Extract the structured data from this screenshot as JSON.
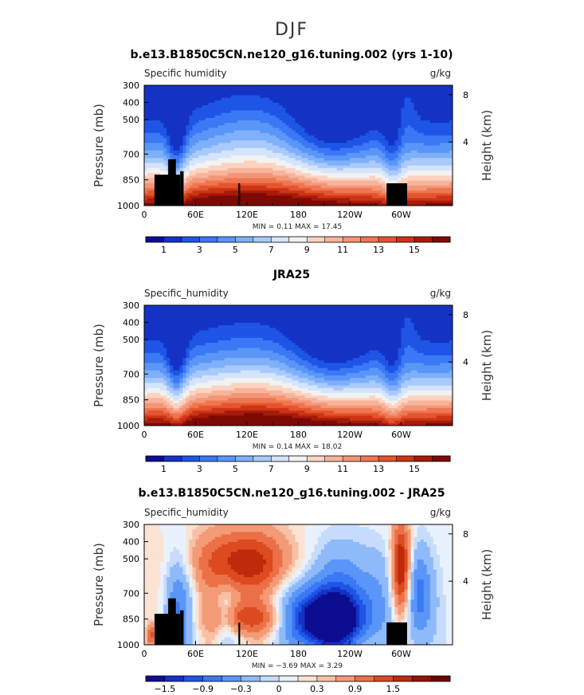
{
  "figure": {
    "season": "DJF"
  },
  "chart_data": [
    {
      "type": "heatmap",
      "title": "b.e13.B1850C5CN.ne120_g16.tuning.002 (yrs 1-10)",
      "left_label": "Specific humidity",
      "units": "g/kg",
      "ylabel": "Pressure (mb)",
      "ylabel_right": "Height (km)",
      "x_ticks": [
        "0",
        "60E",
        "120E",
        "180",
        "120W",
        "60W"
      ],
      "y_ticks": [
        "300",
        "400",
        "500",
        "700",
        "850",
        "1000"
      ],
      "height_ticks": [
        "8",
        "4"
      ],
      "stats": "MIN =    0.11   MAX =   17.45",
      "levels": [
        0,
        1,
        2,
        3,
        4,
        5,
        6,
        7,
        8,
        9,
        10,
        11,
        12,
        13,
        14,
        15,
        16
      ],
      "colorbar_labels": [
        "1",
        "3",
        "5",
        "7",
        "9",
        "11",
        "13",
        "15"
      ],
      "field": "q",
      "min": 0.11,
      "max": 17.45
    },
    {
      "type": "heatmap",
      "title": "JRA25",
      "left_label": "Specific_humidity",
      "units": "g/kg",
      "ylabel": "Pressure (mb)",
      "ylabel_right": "Height (km)",
      "x_ticks": [
        "0",
        "60E",
        "120E",
        "180",
        "120W",
        "60W"
      ],
      "y_ticks": [
        "300",
        "400",
        "500",
        "700",
        "850",
        "1000"
      ],
      "height_ticks": [
        "8",
        "4"
      ],
      "stats": "MIN =    0.14   MAX =   18.02",
      "levels": [
        0,
        1,
        2,
        3,
        4,
        5,
        6,
        7,
        8,
        9,
        10,
        11,
        12,
        13,
        14,
        15,
        16
      ],
      "colorbar_labels": [
        "1",
        "3",
        "5",
        "7",
        "9",
        "11",
        "13",
        "15"
      ],
      "field": "q",
      "min": 0.14,
      "max": 18.02
    },
    {
      "type": "heatmap",
      "title": "b.e13.B1850C5CN.ne120_g16.tuning.002 - JRA25",
      "left_label": "Specific_humidity",
      "units": "g/kg",
      "ylabel": "Pressure (mb)",
      "ylabel_right": "Height (km)",
      "x_ticks": [
        "0",
        "60E",
        "120E",
        "180",
        "120W",
        "60W"
      ],
      "y_ticks": [
        "300",
        "400",
        "500",
        "700",
        "850",
        "1000"
      ],
      "height_ticks": [
        "8",
        "4"
      ],
      "stats": "MIN =   −3.69   MAX =   3.29",
      "levels": [
        -1.8,
        -1.5,
        -1.2,
        -0.9,
        -0.6,
        -0.3,
        -0.15,
        0,
        0.15,
        0.3,
        0.6,
        0.9,
        1.2,
        1.5,
        1.8
      ],
      "colorbar_labels": [
        "−1.5",
        "−0.9",
        "−0.3",
        "0",
        "0.3",
        "0.9",
        "1.5"
      ],
      "field": "diff",
      "min": -3.69,
      "max": 3.29
    }
  ],
  "colors": {
    "abs": [
      "#0d0d91",
      "#1433c4",
      "#1e55e6",
      "#3a78f5",
      "#5a96f8",
      "#7fb0fa",
      "#a9cafb",
      "#d4e4fc",
      "#f2f2f2",
      "#fbd3c0",
      "#f7b49b",
      "#f39677",
      "#ee7651",
      "#e4542e",
      "#cc3414",
      "#a61b0b",
      "#7d0a05"
    ],
    "diff": [
      "#0d0d91",
      "#1433c4",
      "#1e55e6",
      "#3a78f5",
      "#5a96f8",
      "#8fbaf9",
      "#c7dcfc",
      "#e9f1fd",
      "#fbe2d3",
      "#f8c0a4",
      "#f39a76",
      "#ec7047",
      "#dd4a20",
      "#bf2a0c",
      "#931205",
      "#6b0502"
    ]
  }
}
